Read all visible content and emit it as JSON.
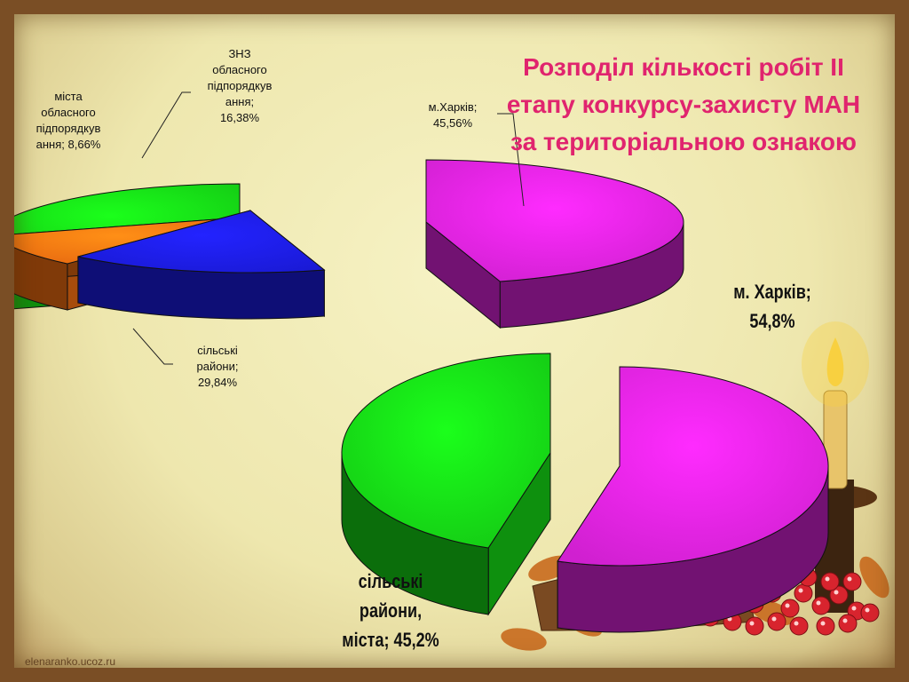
{
  "slide": {
    "title": "Розподіл кількості робіт ІІ етапу конкурсу-захисту МАН за територіальною ознакою",
    "footer": "elenaranko.ucoz.ru"
  },
  "chart_data": [
    {
      "type": "pie",
      "title": "",
      "style": "3d-exploded",
      "slices": [
        {
          "label": "м.Харків;\n45,56%",
          "value": 45.56,
          "color": "#d020d0"
        },
        {
          "label": "ЗНЗ\nобласного\nпідпорядкув\nання;\n16,38%",
          "value": 16.38,
          "color": "#1a1ad6"
        },
        {
          "label": "міста\nобласного\nпідпорядкув\nання; 8,66%",
          "value": 8.66,
          "color": "#e86a10"
        },
        {
          "label": "сільські\nрайони;\n29,84%",
          "value": 29.84,
          "color": "#14c814"
        }
      ]
    },
    {
      "type": "pie",
      "title": "",
      "style": "3d-exploded",
      "slices": [
        {
          "label": "м. Харків;\n54,8%",
          "value": 54.8,
          "color": "#d020d0"
        },
        {
          "label": "сільські\nрайони,\nміста; 45,2%",
          "value": 45.2,
          "color": "#14c814"
        }
      ]
    }
  ],
  "decoration": {
    "candle_color": "#e8c46a",
    "flame_color": "#f8d040",
    "berry_color": "#d8242e",
    "leaf_color": "#c86a1e"
  }
}
